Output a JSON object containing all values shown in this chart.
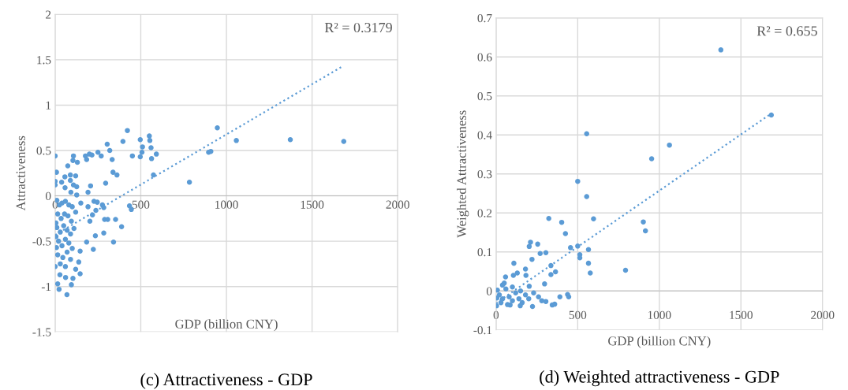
{
  "chart_data": [
    {
      "type": "scatter",
      "title": "(c) Attractiveness - GDP",
      "xlabel": "GDP (billion CNY)",
      "ylabel": "Attractiveness",
      "annotations": [
        "R² = 0.3179"
      ],
      "xlim": [
        0,
        2000
      ],
      "xticks": [
        0,
        500,
        1000,
        1500,
        2000
      ],
      "ylim": [
        -1.5,
        2
      ],
      "yticks": [
        -1.5,
        -1,
        -0.5,
        0,
        0.5,
        1,
        1.5,
        2
      ],
      "grid": true,
      "series": [
        {
          "marker": "circle",
          "color": "#5b9bd5",
          "x": [
            0,
            8,
            0,
            0,
            74,
            107,
            104,
            130,
            177,
            184,
            200,
            215,
            250,
            269,
            304,
            319,
            333,
            338,
            361,
            295,
            396,
            422,
            451,
            497,
            497,
            510,
            507,
            550,
            553,
            560,
            563,
            591,
            574,
            784,
            896,
            909,
            947,
            1058,
            1373,
            1685,
            38,
            57,
            58,
            89,
            89,
            92,
            120,
            126,
            126,
            192,
            207,
            107,
            150,
            192,
            227,
            246,
            276,
            284,
            238,
            218,
            203,
            289,
            307,
            353,
            388,
            284,
            341,
            434,
            445,
            235,
            184,
            223,
            146,
            138,
            146,
            104,
            95,
            69,
            23,
            15,
            28,
            61,
            0,
            120,
            8,
            10,
            25,
            40,
            60,
            80,
            100,
            15,
            35,
            55,
            75,
            95,
            120,
            10,
            30,
            50,
            70,
            90,
            110,
            20,
            40,
            60,
            80,
            100,
            15,
            45,
            70,
            90,
            30,
            60,
            5,
            5
          ],
          "values": [
            0.44,
            0.26,
            0.16,
            0.12,
            0.33,
            0.44,
            0.39,
            0.37,
            0.44,
            0.4,
            0.46,
            0.45,
            0.48,
            0.44,
            0.57,
            0.5,
            0.4,
            0.26,
            0.23,
            0.14,
            0.6,
            0.72,
            0.44,
            0.62,
            0.43,
            0.54,
            0.48,
            0.66,
            0.61,
            0.53,
            0.41,
            0.46,
            0.23,
            0.15,
            0.48,
            0.49,
            0.75,
            0.61,
            0.62,
            0.6,
            0.15,
            0.21,
            0.09,
            0.23,
            0.17,
            0.04,
            0.22,
            0.1,
            0.01,
            0.04,
            0.11,
            0.12,
            -0.08,
            -0.12,
            -0.06,
            -0.07,
            -0.1,
            -0.13,
            -0.16,
            -0.21,
            -0.28,
            -0.26,
            -0.26,
            -0.26,
            -0.34,
            -0.41,
            -0.51,
            -0.11,
            -0.15,
            -0.44,
            -0.51,
            -0.59,
            -0.61,
            -0.73,
            -0.86,
            -0.91,
            -0.98,
            -1.09,
            -1.03,
            -0.97,
            -0.87,
            -0.9,
            -0.78,
            -0.81,
            -0.57,
            -0.05,
            -0.1,
            -0.08,
            -0.06,
            -0.1,
            -0.12,
            -0.2,
            -0.25,
            -0.2,
            -0.22,
            -0.28,
            -0.18,
            -0.35,
            -0.4,
            -0.33,
            -0.38,
            -0.42,
            -0.36,
            -0.5,
            -0.55,
            -0.48,
            -0.52,
            -0.58,
            -0.65,
            -0.68,
            -0.62,
            -0.7,
            -0.75,
            -0.78,
            -0.3,
            -0.45
          ]
        },
        {
          "type": "line",
          "color": "#5b9bd5",
          "line_style": "dotted",
          "x": [
            0,
            1680
          ],
          "values": [
            -0.43,
            1.43
          ]
        }
      ]
    },
    {
      "type": "scatter",
      "title": "(d) Weighted attractiveness - GDP",
      "xlabel": "GDP (billion CNY)",
      "ylabel": "Weighted Attractiveness",
      "annotations": [
        "R² = 0.655"
      ],
      "xlim": [
        0,
        2000
      ],
      "xticks": [
        0,
        500,
        1000,
        1500,
        2000
      ],
      "ylim": [
        -0.1,
        0.7
      ],
      "yticks": [
        -0.1,
        0,
        0.1,
        0.2,
        0.3,
        0.4,
        0.5,
        0.6,
        0.7
      ],
      "grid": true,
      "series": [
        {
          "marker": "circle",
          "color": "#5b9bd5",
          "x": [
            1377,
            1686,
            1062,
            953,
            902,
            915,
            793,
            555,
            500,
            555,
            597,
            323,
            402,
            425,
            456,
            500,
            513,
            513,
            566,
            566,
            577,
            211,
            203,
            255,
            270,
            305,
            220,
            336,
            336,
            364,
            109,
            58,
            180,
            183,
            106,
            130,
            39,
            297,
            203,
            391,
            438,
            445,
            344,
            359,
            223,
            148,
            86,
            305,
            8,
            5,
            3,
            20,
            40,
            60,
            80,
            100,
            120,
            140,
            160,
            180,
            200,
            230,
            260,
            280,
            50,
            100,
            150,
            30,
            70
          ],
          "values": [
            0.618,
            0.451,
            0.374,
            0.339,
            0.177,
            0.154,
            0.053,
            0.403,
            0.281,
            0.242,
            0.185,
            0.186,
            0.176,
            0.147,
            0.111,
            0.115,
            0.093,
            0.085,
            0.106,
            0.071,
            0.046,
            0.125,
            0.114,
            0.12,
            0.096,
            0.098,
            0.081,
            0.065,
            0.042,
            0.049,
            0.071,
            0.036,
            0.056,
            0.04,
            0.04,
            0.046,
            0.015,
            0.018,
            0.012,
            -0.015,
            -0.009,
            -0.015,
            -0.036,
            -0.034,
            -0.04,
            -0.038,
            -0.036,
            -0.027,
            0.002,
            -0.018,
            -0.038,
            -0.01,
            -0.02,
            0.005,
            -0.015,
            -0.025,
            -0.005,
            -0.02,
            -0.03,
            -0.01,
            -0.02,
            -0.005,
            -0.015,
            -0.025,
            0.02,
            0.01,
            0.0,
            -0.03,
            -0.035
          ]
        },
        {
          "type": "line",
          "color": "#5b9bd5",
          "line_style": "dotted",
          "x": [
            0,
            1690
          ],
          "values": [
            -0.031,
            0.456
          ]
        }
      ]
    }
  ]
}
